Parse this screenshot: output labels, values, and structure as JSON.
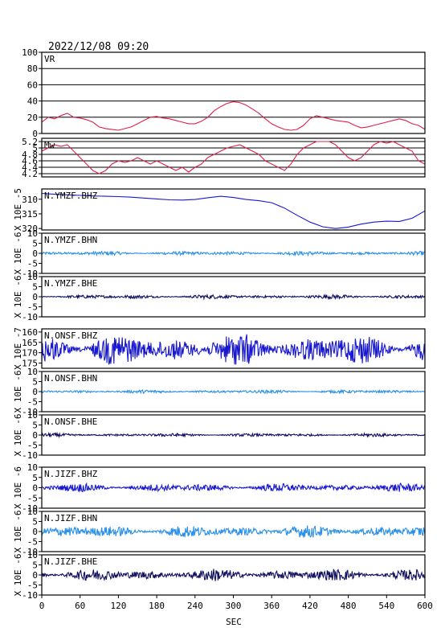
{
  "date_title": "2022/12/08 09:20",
  "x_axis": {
    "label": "SEC",
    "ticks": [
      0,
      60,
      120,
      180,
      240,
      300,
      360,
      420,
      480,
      540,
      600
    ],
    "range": [
      0,
      600
    ]
  },
  "colors": {
    "vr": "#e0204a",
    "mw": "#e0204a",
    "bhz": "#1818d0",
    "bhn": "#2a90e8",
    "bhe": "#101060",
    "grid": "#000000"
  },
  "chart_data": [
    {
      "type": "line",
      "title": "VR",
      "ylim": [
        0,
        100
      ],
      "y_ticks": [
        0,
        20,
        40,
        60,
        80,
        100
      ],
      "grid": true,
      "series": [
        {
          "color_key": "vr",
          "x": [
            0,
            10,
            20,
            30,
            40,
            50,
            60,
            70,
            80,
            90,
            100,
            110,
            120,
            130,
            140,
            150,
            160,
            170,
            180,
            190,
            200,
            210,
            220,
            230,
            240,
            250,
            260,
            270,
            280,
            290,
            300,
            310,
            320,
            330,
            340,
            350,
            360,
            370,
            380,
            390,
            400,
            410,
            420,
            430,
            440,
            450,
            460,
            470,
            480,
            490,
            500,
            510,
            520,
            530,
            540,
            550,
            560,
            570,
            580,
            590,
            600
          ],
          "values": [
            14,
            20,
            18,
            22,
            25,
            20,
            19,
            17,
            14,
            8,
            6,
            5,
            4,
            6,
            8,
            12,
            16,
            20,
            21,
            19,
            18,
            16,
            14,
            12,
            12,
            15,
            20,
            28,
            33,
            37,
            39,
            38,
            35,
            30,
            25,
            18,
            12,
            8,
            5,
            4,
            5,
            10,
            18,
            22,
            20,
            18,
            16,
            15,
            14,
            10,
            7,
            8,
            10,
            12,
            14,
            16,
            18,
            16,
            12,
            10,
            5
          ]
        }
      ]
    },
    {
      "type": "line",
      "title": "Mw",
      "ylim": [
        4.1,
        5.3
      ],
      "y_ticks": [
        4.2,
        4.4,
        4.6,
        4.8,
        5.0,
        5.2
      ],
      "grid": true,
      "series": [
        {
          "color_key": "mw",
          "x": [
            0,
            10,
            20,
            30,
            40,
            50,
            60,
            70,
            80,
            90,
            100,
            110,
            120,
            130,
            140,
            150,
            160,
            170,
            180,
            190,
            200,
            210,
            220,
            230,
            240,
            250,
            260,
            270,
            280,
            290,
            300,
            310,
            320,
            330,
            340,
            350,
            360,
            370,
            380,
            390,
            400,
            410,
            420,
            430,
            440,
            450,
            460,
            470,
            480,
            490,
            500,
            510,
            520,
            530,
            540,
            550,
            560,
            570,
            580,
            590,
            600
          ],
          "values": [
            4.9,
            5.0,
            5.1,
            5.05,
            5.1,
            4.9,
            4.7,
            4.5,
            4.3,
            4.2,
            4.3,
            4.5,
            4.6,
            4.55,
            4.6,
            4.7,
            4.6,
            4.5,
            4.6,
            4.5,
            4.4,
            4.3,
            4.4,
            4.25,
            4.4,
            4.5,
            4.7,
            4.8,
            4.9,
            5.0,
            5.05,
            5.1,
            5.0,
            4.9,
            4.8,
            4.6,
            4.5,
            4.4,
            4.3,
            4.5,
            4.8,
            5.0,
            5.1,
            5.2,
            5.2,
            5.2,
            5.1,
            4.9,
            4.7,
            4.6,
            4.7,
            4.9,
            5.1,
            5.2,
            5.15,
            5.2,
            5.1,
            5.0,
            4.9,
            4.6,
            4.5
          ]
        }
      ]
    },
    {
      "type": "line",
      "title": "N.YMZF.BHZ",
      "unit": "X 10E -5",
      "ylim": [
        320.5,
        306.5
      ],
      "y_ticks": [
        310,
        315,
        320
      ],
      "series": [
        {
          "color_key": "bhz",
          "x": [
            0,
            20,
            40,
            60,
            80,
            100,
            120,
            140,
            160,
            180,
            200,
            220,
            240,
            260,
            280,
            300,
            320,
            340,
            360,
            380,
            400,
            420,
            440,
            460,
            480,
            500,
            520,
            540,
            560,
            580,
            600
          ],
          "values": [
            308,
            308.3,
            308.5,
            308.7,
            308.9,
            309.0,
            309.1,
            309.3,
            309.6,
            309.9,
            310.2,
            310.3,
            310.1,
            309.5,
            309.0,
            309.4,
            310.1,
            310.5,
            311.2,
            313.0,
            315.5,
            317.8,
            319.4,
            320.0,
            319.5,
            318.5,
            317.8,
            317.5,
            317.6,
            316.5,
            314.0
          ]
        }
      ]
    },
    {
      "type": "line",
      "title": "N.YMZF.BHN",
      "unit": "X 10E -6",
      "ylim": [
        -10,
        10
      ],
      "y_ticks": [
        -10,
        -5,
        0,
        5,
        10
      ],
      "series": [
        {
          "color_key": "bhn",
          "noise_amplitude": 0.6
        }
      ]
    },
    {
      "type": "line",
      "title": "N.YMZF.BHE",
      "unit": "X 10E -6",
      "ylim": [
        -10,
        10
      ],
      "y_ticks": [
        -10,
        -5,
        0,
        5,
        10
      ],
      "series": [
        {
          "color_key": "bhe",
          "noise_amplitude": 0.6
        }
      ]
    },
    {
      "type": "line",
      "title": "N.ONSF.BHZ",
      "unit": "X 10E -7",
      "ylim": [
        177.5,
        158.5
      ],
      "y_ticks": [
        160,
        165,
        170,
        175
      ],
      "series": [
        {
          "color_key": "bhz",
          "center": 168.5,
          "noise_amplitude": 4.5
        }
      ]
    },
    {
      "type": "line",
      "title": "N.ONSF.BHN",
      "unit": "X 10E -6",
      "ylim": [
        -10,
        10
      ],
      "y_ticks": [
        -10,
        -5,
        0,
        5,
        10
      ],
      "series": [
        {
          "color_key": "bhn",
          "noise_amplitude": 0.5
        }
      ]
    },
    {
      "type": "line",
      "title": "N.ONSF.BHE",
      "unit": "X 10E -6",
      "ylim": [
        -10,
        10
      ],
      "y_ticks": [
        -10,
        -5,
        0,
        5,
        10
      ],
      "series": [
        {
          "color_key": "bhe",
          "noise_amplitude": 0.5
        }
      ]
    },
    {
      "type": "line",
      "title": "N.JIZF.BHZ",
      "unit": "X 10E -6",
      "ylim": [
        -10,
        10
      ],
      "y_ticks": [
        -10,
        -5,
        0,
        5,
        10
      ],
      "series": [
        {
          "color_key": "bhz",
          "noise_amplitude": 1.2
        }
      ]
    },
    {
      "type": "line",
      "title": "N.JIZF.BHN",
      "unit": "X 10E -6",
      "ylim": [
        -10,
        10
      ],
      "y_ticks": [
        -10,
        -5,
        0,
        5,
        10
      ],
      "series": [
        {
          "color_key": "bhn",
          "noise_amplitude": 1.8
        }
      ]
    },
    {
      "type": "line",
      "title": "N.JIZF.BHE",
      "unit": "X 10E -6",
      "ylim": [
        -10,
        10
      ],
      "y_ticks": [
        -10,
        -5,
        0,
        5,
        10
      ],
      "series": [
        {
          "color_key": "bhe",
          "noise_amplitude": 1.8
        }
      ]
    }
  ]
}
